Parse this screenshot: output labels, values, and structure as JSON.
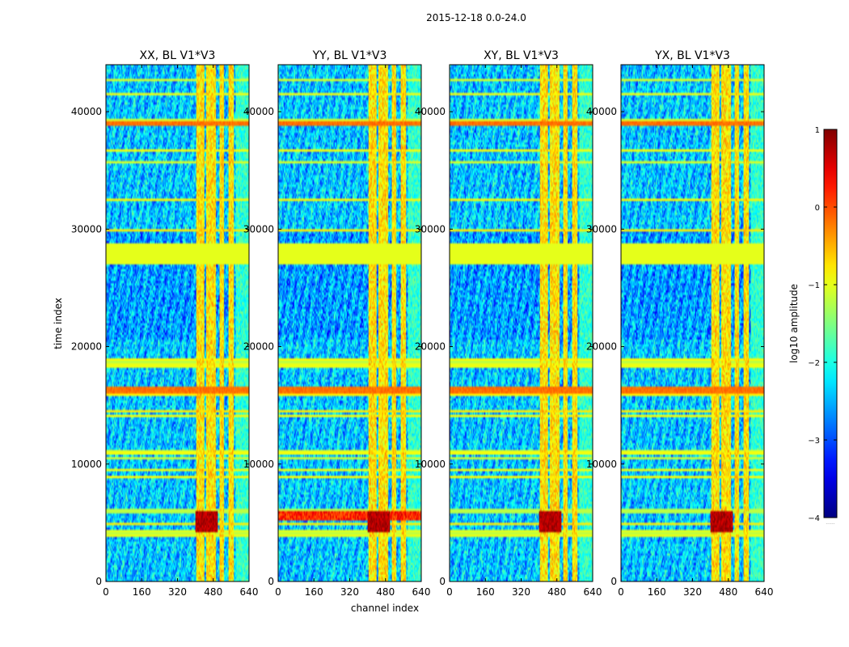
{
  "chart_data": {
    "type": "heatmap",
    "suptitle": "2015-12-18 0.0-24.0",
    "xlabel": "channel index",
    "ylabel": "time index",
    "xlim": [
      0,
      640
    ],
    "ylim": [
      0,
      44000
    ],
    "xticks": [
      0,
      160,
      320,
      480,
      640
    ],
    "yticks": [
      0,
      10000,
      20000,
      30000,
      40000
    ],
    "panels": [
      {
        "title": "XX, BL V1*V3",
        "channel_spike_strength": 1.0
      },
      {
        "title": "YY, BL V1*V3",
        "channel_spike_strength": 1.0
      },
      {
        "title": "XY, BL V1*V3",
        "channel_spike_strength": 1.0
      },
      {
        "title": "YX, BL V1*V3",
        "channel_spike_strength": 1.0
      }
    ],
    "flagged_time_band": [
      27000,
      28800
    ],
    "flagged_value": -1.0,
    "bright_channel_bands": [
      [
        405,
        440
      ],
      [
        450,
        490
      ],
      [
        510,
        528
      ],
      [
        550,
        570
      ]
    ],
    "strong_rfi_time_bands": [
      [
        16100,
        16500
      ],
      [
        38900,
        39200
      ],
      [
        4300,
        6000
      ]
    ],
    "colorbar": {
      "label": "log10 amplitude",
      "min": -4,
      "max": 1,
      "ticks": [
        1,
        0,
        -1,
        -2,
        -3,
        -4
      ],
      "extend_label": "......"
    }
  }
}
